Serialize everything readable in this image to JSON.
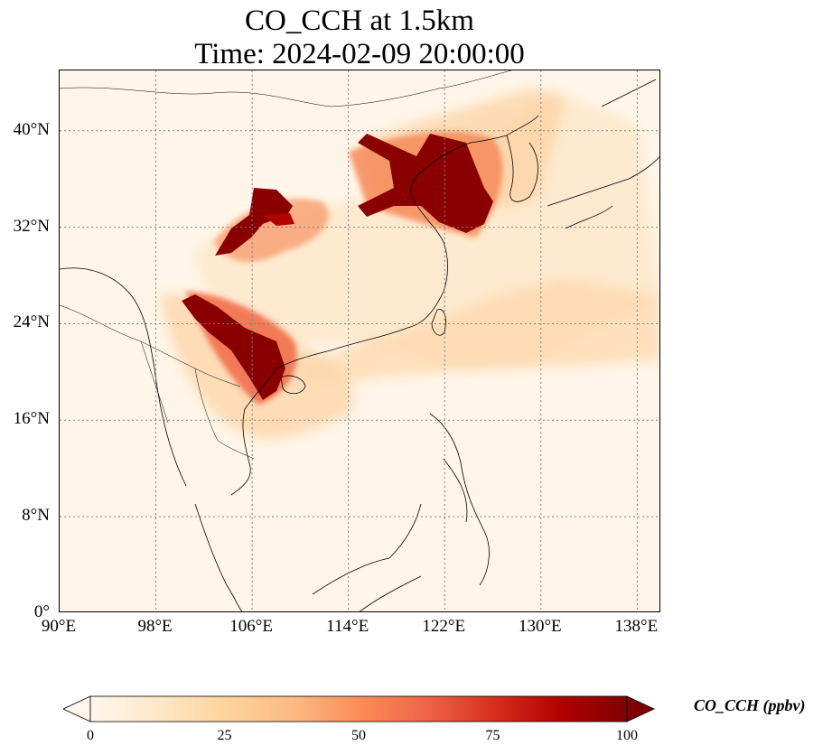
{
  "title_line1": "CO_CCH at 1.5km",
  "title_line2": "Time: 2024-02-09 20:00:00",
  "map": {
    "lon_range": [
      90,
      140
    ],
    "lat_range": [
      0,
      45
    ],
    "lat_ticks": [
      {
        "value": 0,
        "label": "0°"
      },
      {
        "value": 8,
        "label": "8°N"
      },
      {
        "value": 16,
        "label": "16°N"
      },
      {
        "value": 24,
        "label": "24°N"
      },
      {
        "value": 32,
        "label": "32°N"
      },
      {
        "value": 40,
        "label": "40°N"
      }
    ],
    "lon_ticks": [
      {
        "value": 90,
        "label": "90°E"
      },
      {
        "value": 98,
        "label": "98°E"
      },
      {
        "value": 106,
        "label": "106°E"
      },
      {
        "value": 114,
        "label": "114°E"
      },
      {
        "value": 122,
        "label": "122°E"
      },
      {
        "value": 130,
        "label": "130°E"
      },
      {
        "value": 138,
        "label": "138°E"
      }
    ],
    "gridlines": true,
    "colormap": "OrRd",
    "background_color": "#fff5e8",
    "high_color": "#7f0000"
  },
  "colorbar": {
    "min": 0,
    "max": 100,
    "extend": "both",
    "ticks": [
      {
        "value": 0,
        "label": "0"
      },
      {
        "value": 25,
        "label": "25"
      },
      {
        "value": 50,
        "label": "50"
      },
      {
        "value": 75,
        "label": "75"
      },
      {
        "value": 100,
        "label": "100"
      }
    ],
    "label": "CO_CCH (ppbv)",
    "stops": [
      "#fff7ec",
      "#fee8c8",
      "#fdd49e",
      "#fdbb84",
      "#fc8d59",
      "#ef6548",
      "#d7301f",
      "#b30000",
      "#7f0000"
    ]
  }
}
